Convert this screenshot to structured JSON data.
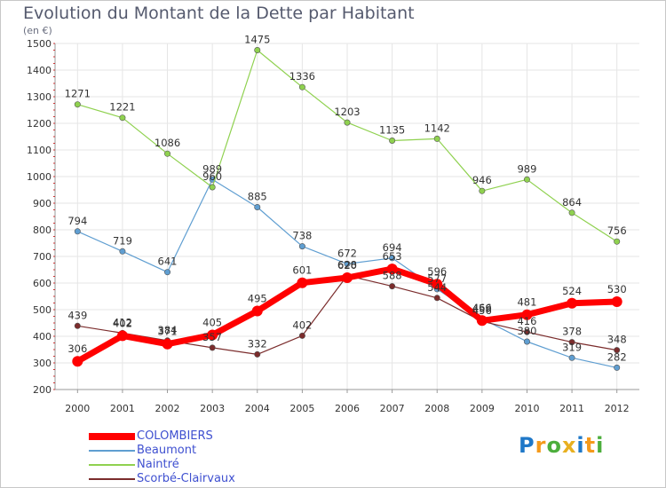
{
  "chart_data": {
    "type": "line",
    "title": "Evolution du Montant de la Dette par Habitant",
    "subtitle": "(en €)",
    "x": [
      "2000",
      "2001",
      "2002",
      "2003",
      "2004",
      "2005",
      "2006",
      "2007",
      "2008",
      "2009",
      "2010",
      "2011",
      "2012"
    ],
    "ylim": [
      200,
      1500
    ],
    "yticks": [
      200,
      300,
      400,
      500,
      600,
      700,
      800,
      900,
      1000,
      1100,
      1200,
      1300,
      1400,
      1500
    ],
    "grid": true,
    "legend_position": "bottom-left",
    "series": [
      {
        "name": "COLOMBIERS",
        "color": "#ff0000",
        "values": [
          306,
          402,
          371,
          405,
          495,
          601,
          620,
          653,
          596,
          459,
          481,
          524,
          530
        ]
      },
      {
        "name": "Beaumont",
        "color": "#5f9ed1",
        "values": [
          794,
          719,
          641,
          989,
          885,
          738,
          672,
          694,
          577,
          466,
          380,
          319,
          282
        ]
      },
      {
        "name": "Naintré",
        "color": "#8fd14f",
        "values": [
          1271,
          1221,
          1086,
          960,
          1475,
          1336,
          1203,
          1135,
          1142,
          946,
          989,
          864,
          756
        ]
      },
      {
        "name": "Scorbé-Clairvaux",
        "color": "#7b2c2c",
        "values": [
          439,
          412,
          384,
          357,
          332,
          402,
          628,
          588,
          544,
          456,
          416,
          378,
          348
        ]
      }
    ]
  },
  "legend_label_color": "#3f50d0",
  "logo": {
    "letters": [
      "P",
      "r",
      "o",
      "x",
      "i",
      "t",
      "i"
    ],
    "colors": [
      "#1f78c8",
      "#f59a1b",
      "#4cae3c",
      "#e8b020",
      "#1f78c8",
      "#f59a1b",
      "#4cae3c"
    ]
  }
}
